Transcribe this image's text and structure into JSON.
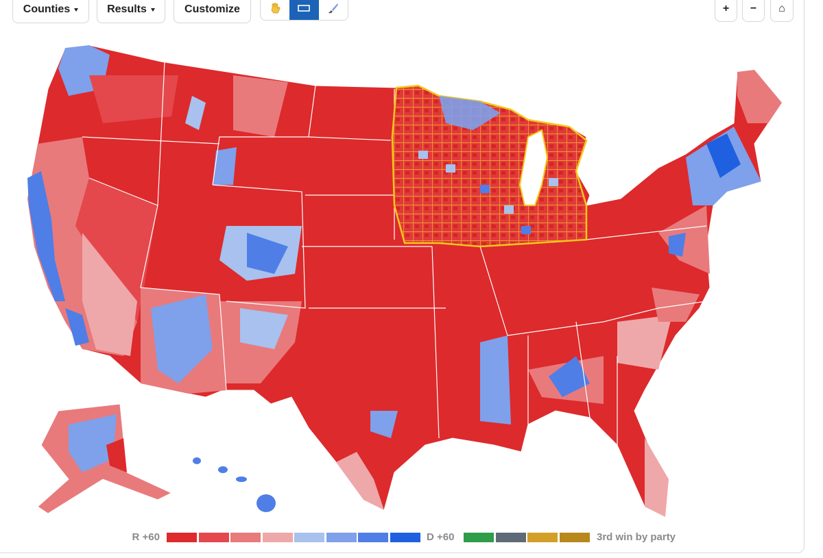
{
  "toolbar": {
    "menus": [
      "Counties",
      "Results",
      "Customize"
    ],
    "zoom": [
      "+",
      "−",
      "⌂"
    ]
  },
  "legend": {
    "left_label": "R +60",
    "right_label": "D +60",
    "third_label": "3rd win by party",
    "margin_colors": [
      "#dd2a2c",
      "#e4484c",
      "#e87a7c",
      "#efa8a9",
      "#a8c1ee",
      "#7fa0ea",
      "#4f7ee6",
      "#1f60e0"
    ],
    "third_colors": [
      "#2e9c48",
      "#5f6a78",
      "#d49f28",
      "#b8881c"
    ]
  }
}
